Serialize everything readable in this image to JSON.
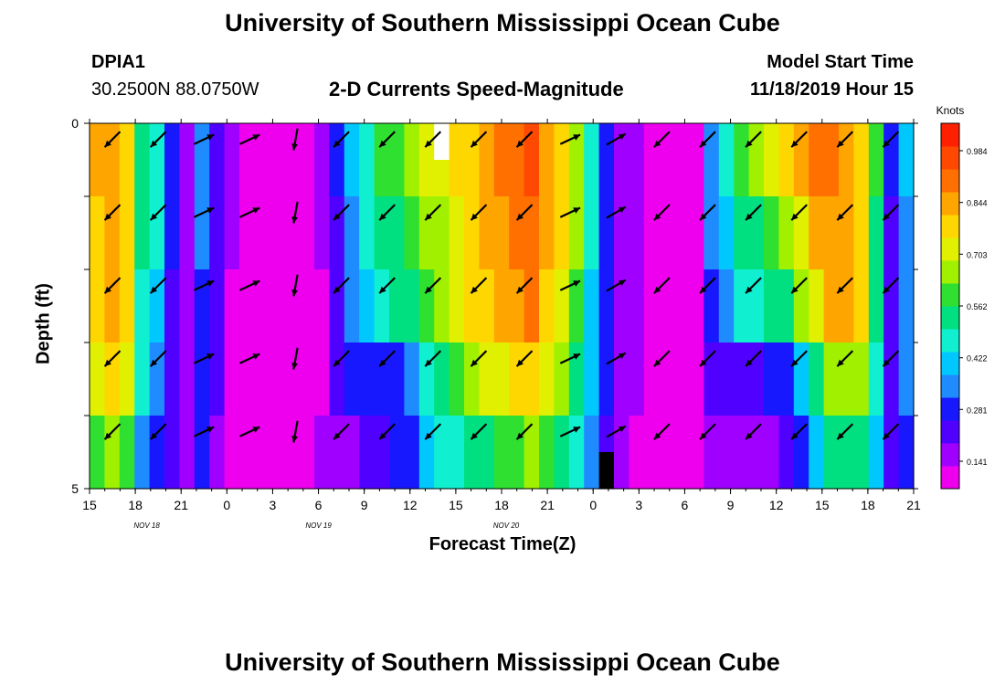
{
  "header": {
    "title_top": "University of Southern Mississippi Ocean Cube",
    "title_bottom": "University of Southern Mississippi Ocean Cube",
    "station_id": "DPIA1",
    "station_coords": "30.2500N 88.0750W",
    "plot_title": "2-D Currents Speed-Magnitude",
    "model_start_label": "Model Start Time",
    "model_start_value": "11/18/2019 Hour 15"
  },
  "chart_data": {
    "type": "heatmap",
    "title": "2-D Currents Speed-Magnitude",
    "xlabel": "Forecast Time(Z)",
    "ylabel": "Depth (ft)",
    "y_range": [
      0,
      5
    ],
    "y_tick_labels": [
      "0",
      "5"
    ],
    "x_tick_labels": [
      "15",
      "18",
      "21",
      "0",
      "3",
      "6",
      "9",
      "12",
      "15",
      "18",
      "21",
      "0",
      "3",
      "6",
      "9",
      "12",
      "15",
      "18",
      "21"
    ],
    "date_labels": [
      "NOV 18",
      "NOV 19",
      "NOV 20"
    ],
    "colorbar": {
      "label": "Knots",
      "tick_labels": [
        "0.984",
        "0.844",
        "0.703",
        "0.562",
        "0.422",
        "0.281",
        "0.141"
      ],
      "colors": [
        "#ee00ee",
        "#a000ff",
        "#5000ff",
        "#1818ff",
        "#1e8cff",
        "#00c8ff",
        "#10f0d0",
        "#00e080",
        "#30e030",
        "#a0f000",
        "#e0f000",
        "#ffd700",
        "#ffa500",
        "#ff7000",
        "#ff4800",
        "#ff2000"
      ]
    },
    "time_steps": 55,
    "depth_layers": 10,
    "speed_knots_by_layer": [
      [
        0.81,
        0.84,
        0.79,
        0.49,
        0.42,
        0.21,
        0.1,
        0.28,
        0.18,
        0.07,
        0.05,
        0.03,
        0.03,
        0.04,
        0.04,
        0.07,
        0.2,
        0.34,
        0.44,
        0.56,
        0.59,
        0.62,
        0.67,
        0.7,
        0.74,
        0.79,
        0.86,
        0.88,
        0.92,
        0.94,
        0.85,
        0.75,
        0.62,
        0.42,
        0.24,
        0.13,
        0.09,
        0.06,
        0.04,
        0.03,
        0.06,
        0.3,
        0.41,
        0.55,
        0.61,
        0.69,
        0.74,
        0.82,
        0.88,
        0.9,
        0.86,
        0.78,
        0.56,
        0.21,
        0.35
      ],
      [
        0.81,
        0.84,
        0.79,
        0.49,
        0.42,
        0.21,
        0.1,
        0.28,
        0.18,
        0.07,
        0.05,
        0.03,
        0.03,
        0.04,
        0.04,
        0.07,
        0.2,
        0.34,
        0.44,
        0.56,
        0.59,
        0.62,
        0.67,
        0.7,
        0.74,
        0.79,
        0.86,
        0.88,
        0.92,
        0.94,
        0.85,
        0.75,
        0.62,
        0.42,
        0.24,
        0.13,
        0.09,
        0.06,
        0.04,
        0.03,
        0.06,
        0.3,
        0.41,
        0.55,
        0.61,
        0.69,
        0.74,
        0.82,
        0.88,
        0.9,
        0.86,
        0.78,
        0.56,
        0.21,
        0.35
      ],
      [
        0.79,
        0.82,
        0.77,
        0.47,
        0.4,
        0.2,
        0.09,
        0.27,
        0.17,
        0.07,
        0.05,
        0.03,
        0.03,
        0.04,
        0.04,
        0.07,
        0.19,
        0.3,
        0.4,
        0.49,
        0.51,
        0.54,
        0.6,
        0.64,
        0.7,
        0.76,
        0.83,
        0.85,
        0.9,
        0.92,
        0.83,
        0.73,
        0.6,
        0.4,
        0.23,
        0.12,
        0.09,
        0.06,
        0.04,
        0.03,
        0.06,
        0.28,
        0.38,
        0.47,
        0.52,
        0.56,
        0.6,
        0.7,
        0.8,
        0.86,
        0.82,
        0.75,
        0.52,
        0.19,
        0.33
      ],
      [
        0.79,
        0.82,
        0.77,
        0.47,
        0.4,
        0.2,
        0.09,
        0.27,
        0.17,
        0.07,
        0.05,
        0.03,
        0.03,
        0.04,
        0.04,
        0.07,
        0.19,
        0.3,
        0.4,
        0.49,
        0.51,
        0.54,
        0.6,
        0.64,
        0.7,
        0.76,
        0.83,
        0.85,
        0.9,
        0.92,
        0.83,
        0.73,
        0.6,
        0.4,
        0.23,
        0.12,
        0.09,
        0.06,
        0.04,
        0.03,
        0.06,
        0.28,
        0.38,
        0.47,
        0.52,
        0.56,
        0.6,
        0.7,
        0.8,
        0.86,
        0.82,
        0.75,
        0.52,
        0.19,
        0.33
      ],
      [
        0.76,
        0.8,
        0.74,
        0.44,
        0.37,
        0.19,
        0.09,
        0.26,
        0.16,
        0.06,
        0.04,
        0.03,
        0.03,
        0.04,
        0.04,
        0.06,
        0.18,
        0.27,
        0.36,
        0.46,
        0.48,
        0.52,
        0.58,
        0.62,
        0.67,
        0.73,
        0.79,
        0.81,
        0.86,
        0.88,
        0.79,
        0.7,
        0.57,
        0.38,
        0.22,
        0.11,
        0.08,
        0.05,
        0.04,
        0.03,
        0.06,
        0.26,
        0.33,
        0.4,
        0.44,
        0.48,
        0.52,
        0.62,
        0.72,
        0.8,
        0.8,
        0.74,
        0.5,
        0.18,
        0.31
      ],
      [
        0.76,
        0.8,
        0.74,
        0.44,
        0.37,
        0.19,
        0.09,
        0.26,
        0.16,
        0.06,
        0.04,
        0.03,
        0.03,
        0.04,
        0.04,
        0.06,
        0.18,
        0.27,
        0.36,
        0.46,
        0.48,
        0.52,
        0.58,
        0.62,
        0.67,
        0.73,
        0.79,
        0.81,
        0.86,
        0.88,
        0.79,
        0.7,
        0.57,
        0.38,
        0.22,
        0.11,
        0.08,
        0.05,
        0.04,
        0.03,
        0.06,
        0.26,
        0.33,
        0.4,
        0.44,
        0.48,
        0.52,
        0.62,
        0.72,
        0.8,
        0.8,
        0.74,
        0.5,
        0.18,
        0.31
      ],
      [
        0.7,
        0.74,
        0.68,
        0.4,
        0.33,
        0.17,
        0.08,
        0.24,
        0.15,
        0.06,
        0.04,
        0.03,
        0.03,
        0.04,
        0.04,
        0.06,
        0.16,
        0.24,
        0.22,
        0.2,
        0.24,
        0.32,
        0.4,
        0.5,
        0.56,
        0.62,
        0.68,
        0.7,
        0.74,
        0.76,
        0.68,
        0.6,
        0.5,
        0.34,
        0.2,
        0.1,
        0.07,
        0.05,
        0.04,
        0.03,
        0.05,
        0.18,
        0.18,
        0.18,
        0.18,
        0.2,
        0.24,
        0.36,
        0.5,
        0.62,
        0.66,
        0.64,
        0.44,
        0.16,
        0.28
      ],
      [
        0.7,
        0.74,
        0.68,
        0.4,
        0.33,
        0.17,
        0.08,
        0.24,
        0.15,
        0.06,
        0.04,
        0.03,
        0.03,
        0.04,
        0.04,
        0.06,
        0.16,
        0.24,
        0.22,
        0.2,
        0.24,
        0.32,
        0.4,
        0.5,
        0.56,
        0.62,
        0.68,
        0.7,
        0.74,
        0.76,
        0.68,
        0.6,
        0.5,
        0.34,
        0.2,
        0.1,
        0.07,
        0.05,
        0.04,
        0.03,
        0.05,
        0.18,
        0.18,
        0.18,
        0.18,
        0.2,
        0.24,
        0.36,
        0.5,
        0.62,
        0.66,
        0.64,
        0.44,
        0.16,
        0.28
      ],
      [
        0.56,
        0.6,
        0.54,
        0.32,
        0.26,
        0.14,
        0.07,
        0.2,
        0.12,
        0.05,
        0.04,
        0.03,
        0.03,
        0.04,
        0.05,
        0.08,
        0.1,
        0.12,
        0.14,
        0.16,
        0.2,
        0.26,
        0.34,
        0.4,
        0.44,
        0.48,
        0.52,
        0.55,
        0.58,
        0.6,
        0.54,
        0.48,
        0.4,
        0.28,
        0.16,
        0.08,
        0.06,
        0.04,
        0.04,
        0.03,
        0.04,
        0.1,
        0.09,
        0.08,
        0.08,
        0.1,
        0.14,
        0.22,
        0.36,
        0.48,
        0.52,
        0.5,
        0.36,
        0.14,
        0.24
      ],
      [
        0.56,
        0.6,
        0.54,
        0.32,
        0.26,
        0.14,
        0.07,
        0.2,
        0.12,
        0.05,
        0.04,
        0.03,
        0.03,
        0.04,
        0.05,
        0.08,
        0.1,
        0.12,
        0.14,
        0.16,
        0.2,
        0.26,
        0.34,
        0.4,
        0.44,
        0.48,
        0.52,
        0.55,
        0.58,
        0.6,
        0.54,
        0.48,
        0.4,
        0.28,
        0.16,
        0.08,
        0.06,
        0.04,
        0.04,
        0.03,
        0.04,
        0.1,
        0.09,
        0.08,
        0.08,
        0.1,
        0.14,
        0.22,
        0.36,
        0.48,
        0.52,
        0.5,
        0.36,
        0.14,
        0.24
      ]
    ],
    "vector_columns": 18,
    "vector_rows": 5,
    "vector_direction_deg_by_column": [
      135,
      135,
      -25,
      -25,
      100,
      135,
      135,
      135,
      135,
      135,
      -25,
      -30,
      135,
      135,
      135,
      135,
      135,
      135
    ],
    "missing_cells": [
      {
        "time_index": 23,
        "layer": 0,
        "color": "#ffffff"
      },
      {
        "time_index": 34,
        "layer": 9,
        "color": "#000000"
      }
    ]
  }
}
